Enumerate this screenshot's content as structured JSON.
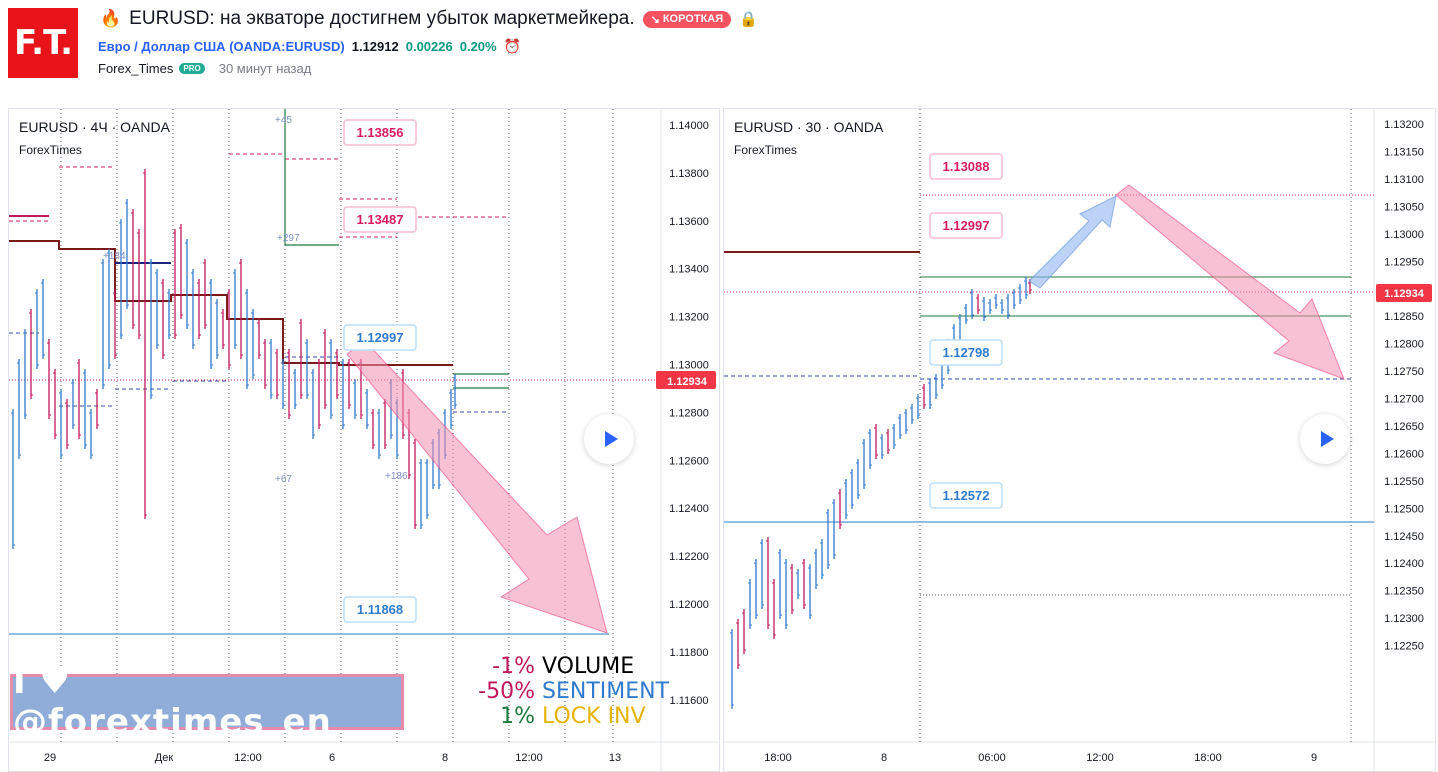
{
  "header": {
    "logo_text": "F.T.",
    "title": "EURUSD: на экваторе достигнем убыток маркетмейкера.",
    "direction_badge": "КОРОТКАЯ",
    "symbol_name": "Евро / Доллар США",
    "symbol_code": "(OANDA:EURUSD)",
    "price": "1.12912",
    "change": "0.00226",
    "change_pct": "0.20%",
    "author": "Forex_Times",
    "pro_badge": "PRO",
    "published": "30 минут назад"
  },
  "left_chart": {
    "legend": "EURUSD · 4Ч · OANDA",
    "sublegend": "ForexTimes",
    "price_ticks": [
      "1.14000",
      "1.13800",
      "1.13600",
      "1.13400",
      "1.13200",
      "1.13000",
      "1.12800",
      "1.12600",
      "1.12400",
      "1.12200",
      "1.12000",
      "1.11800",
      "1.11600"
    ],
    "current_price": "1.12934",
    "time_ticks": [
      "29",
      "Дек",
      "12:00",
      "6",
      "8",
      "12:00",
      "13"
    ],
    "labels": [
      "1.13856",
      "1.13487",
      "1.12997",
      "1.11868"
    ],
    "level_notes": [
      "+45",
      "+297",
      "+184",
      "+67",
      "+186"
    ],
    "promo": "I ♥ @forextimes_en",
    "stats": [
      {
        "pct": "-1%",
        "name": "VOLUME",
        "pct_color": "#c2185b",
        "name_color": "#000000"
      },
      {
        "pct": "-50%",
        "name": "SENTIMENT",
        "pct_color": "#c2185b",
        "name_color": "#2e7bcf"
      },
      {
        "pct": "1%",
        "name": "LOCK INV",
        "pct_color": "#1b7a3e",
        "name_color": "#e6b400"
      }
    ]
  },
  "right_chart": {
    "legend": "EURUSD · 30 · OANDA",
    "sublegend": "ForexTimes",
    "price_ticks": [
      "1.13200",
      "1.13150",
      "1.13100",
      "1.13050",
      "1.13000",
      "1.12950",
      "1.12900",
      "1.12850",
      "1.12800",
      "1.12750",
      "1.12700",
      "1.12650",
      "1.12600",
      "1.12550",
      "1.12500",
      "1.12450",
      "1.12400",
      "1.12350",
      "1.12300",
      "1.12250"
    ],
    "current_price": "1.12934",
    "time_ticks": [
      "18:00",
      "8",
      "06:00",
      "12:00",
      "18:00",
      "9"
    ],
    "labels": [
      "1.13088",
      "1.12997",
      "1.12798",
      "1.12572"
    ]
  },
  "colors": {
    "accent": "#2962ff",
    "up": "#2e7bcf",
    "down": "#c2185b",
    "label_pink": "#d81b60",
    "label_blue": "#2e7bcf",
    "arrow_pink": "#f48fb1",
    "arrow_blue": "#90b4f0"
  }
}
